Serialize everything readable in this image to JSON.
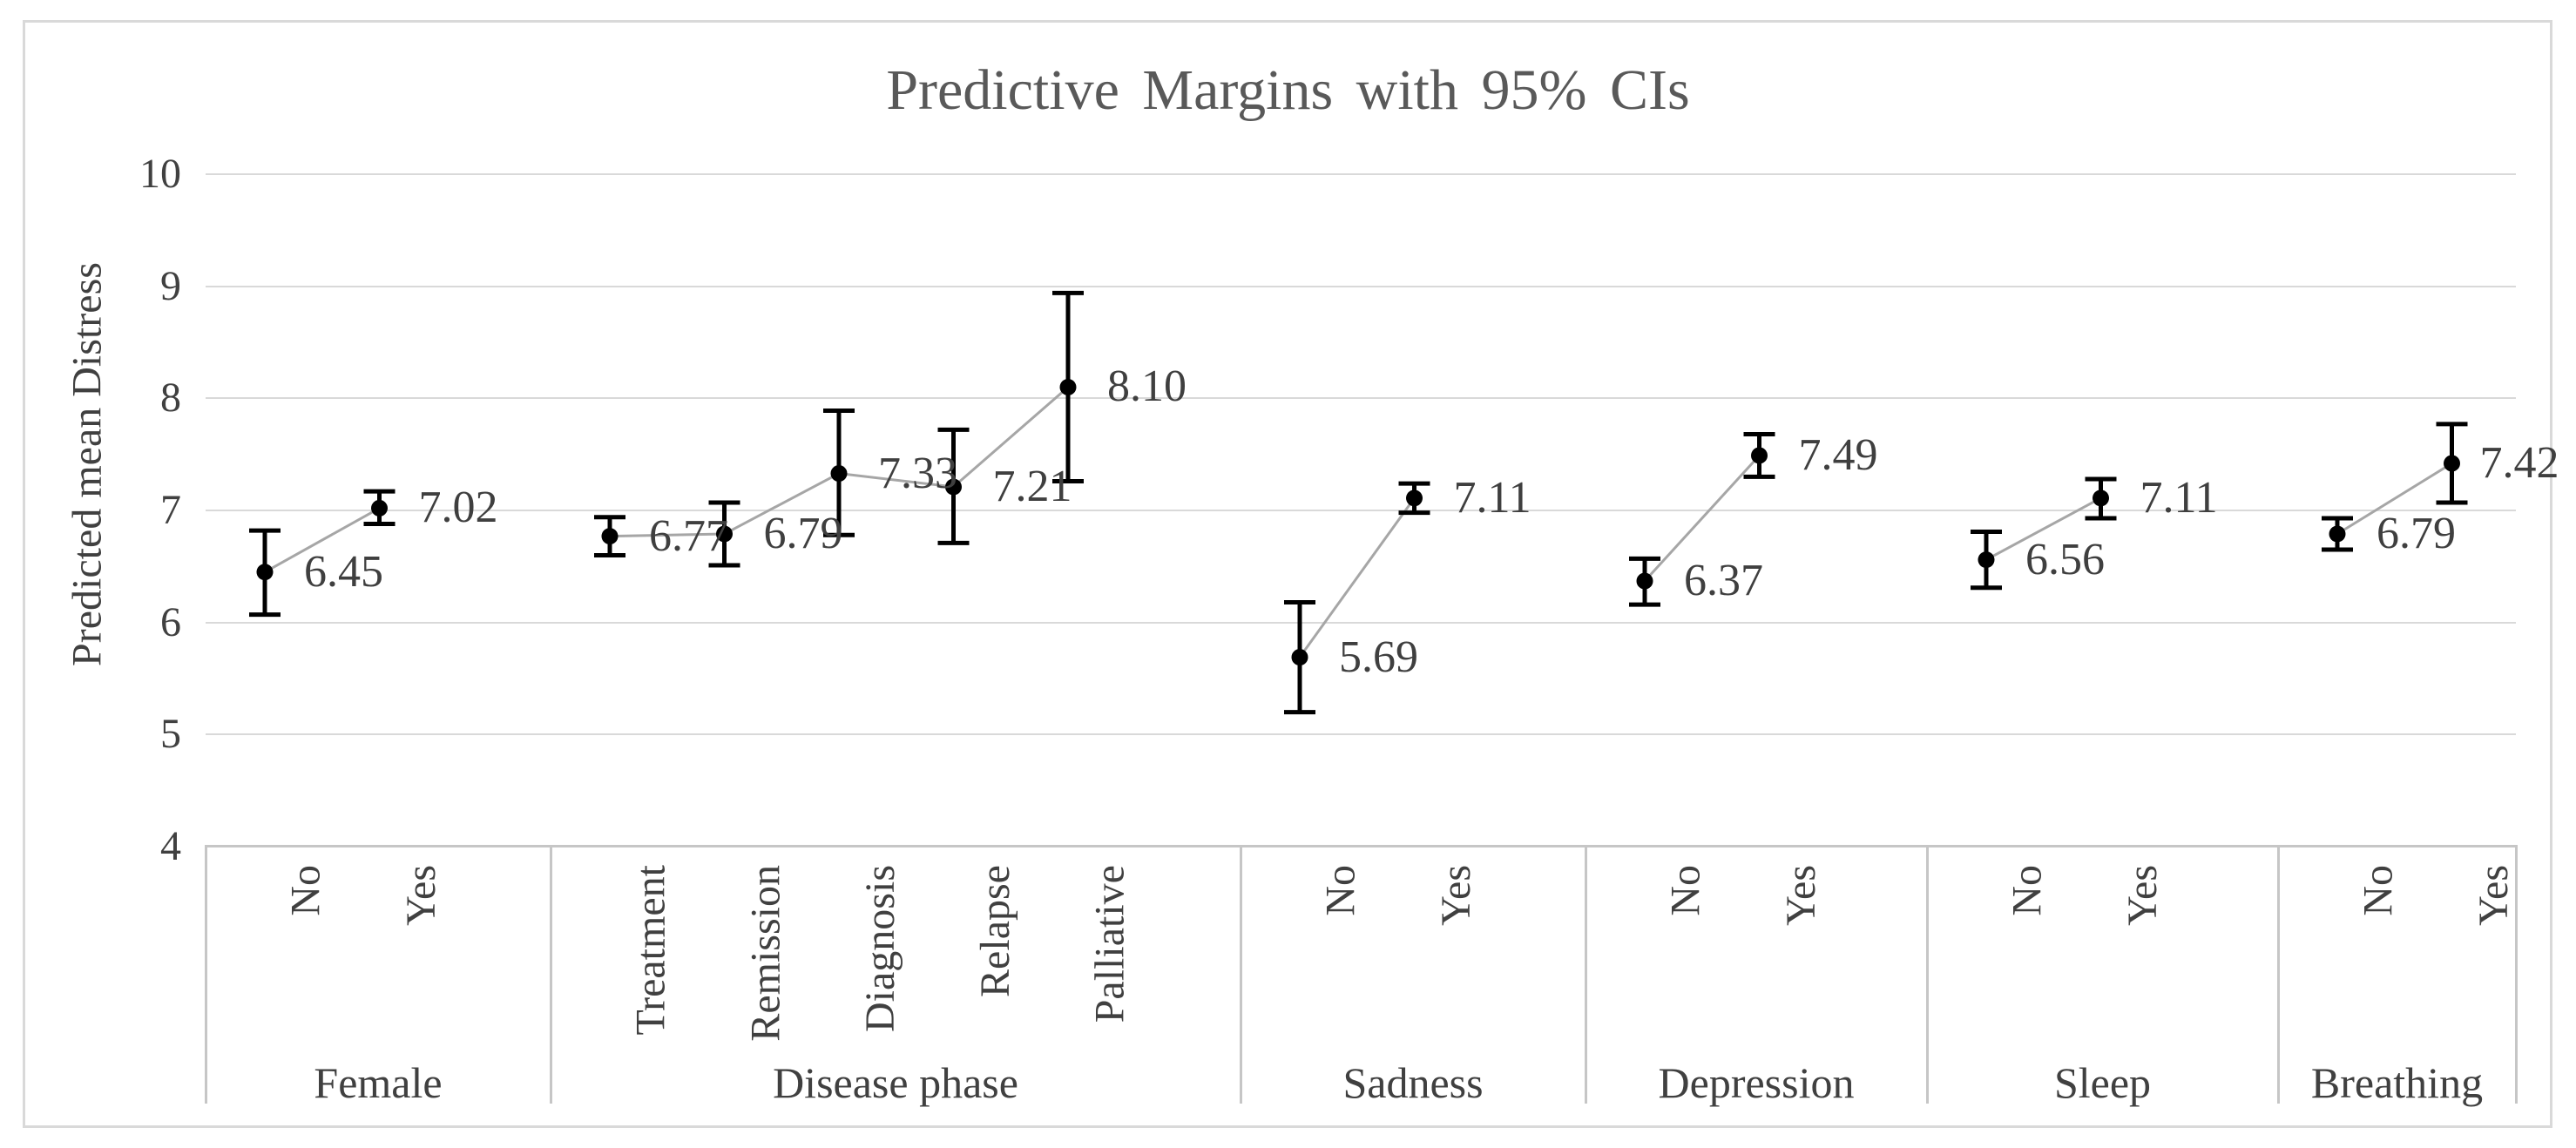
{
  "figure": {
    "background": "#ffffff",
    "border_color": "#d9d9d9"
  },
  "chart_data": {
    "type": "line",
    "subtype": "point-estimates-with-error-bars",
    "title": "Predictive Margins with 95% CIs",
    "xlabel": "",
    "ylabel": "Predicted mean Distress",
    "ylim": [
      4,
      10
    ],
    "yticks": [
      10,
      9,
      8,
      7,
      6,
      5,
      4
    ],
    "grid": "horizontal",
    "legend": "none",
    "groups": [
      {
        "label": "Female",
        "categories": [
          "No",
          "Yes"
        ],
        "values": [
          6.45,
          7.02
        ],
        "ci_low": [
          6.07,
          6.88
        ],
        "ci_high": [
          6.82,
          7.17
        ],
        "value_labels": [
          "6.45",
          "7.02"
        ]
      },
      {
        "label": "Disease phase",
        "categories": [
          "Treatment",
          "Remission",
          "Diagnosis",
          "Relapse",
          "Palliative"
        ],
        "values": [
          6.77,
          6.79,
          7.33,
          7.21,
          8.1
        ],
        "ci_low": [
          6.6,
          6.51,
          6.78,
          6.71,
          7.26
        ],
        "ci_high": [
          6.94,
          7.07,
          7.89,
          7.72,
          8.94
        ],
        "value_labels": [
          "6.77",
          "6.79",
          "7.33",
          "7.21",
          "8.10"
        ]
      },
      {
        "label": "Sadness",
        "categories": [
          "No",
          "Yes"
        ],
        "values": [
          5.69,
          7.11
        ],
        "ci_low": [
          5.2,
          6.98
        ],
        "ci_high": [
          6.18,
          7.24
        ],
        "value_labels": [
          "5.69",
          "7.11"
        ]
      },
      {
        "label": "Depression",
        "categories": [
          "No",
          "Yes"
        ],
        "values": [
          6.37,
          7.49
        ],
        "ci_low": [
          6.16,
          7.3
        ],
        "ci_high": [
          6.57,
          7.68
        ],
        "value_labels": [
          "6.37",
          "7.49"
        ]
      },
      {
        "label": "Sleep",
        "categories": [
          "No",
          "Yes"
        ],
        "values": [
          6.56,
          7.11
        ],
        "ci_low": [
          6.31,
          6.93
        ],
        "ci_high": [
          6.81,
          7.28
        ],
        "value_labels": [
          "6.56",
          "7.11"
        ]
      },
      {
        "label": "Breathing",
        "categories": [
          "No",
          "Yes"
        ],
        "values": [
          6.79,
          7.42
        ],
        "ci_low": [
          6.65,
          7.07
        ],
        "ci_high": [
          6.93,
          7.77
        ],
        "value_labels": [
          "6.79",
          "7.42"
        ]
      }
    ],
    "colors": {
      "point": "#000000",
      "error_bar": "#000000",
      "connector": "#a6a6a6",
      "gridline": "#d9d9d9",
      "axis_box": "#c6c6c6",
      "label_text": "#404040",
      "title_text": "#595959"
    }
  }
}
